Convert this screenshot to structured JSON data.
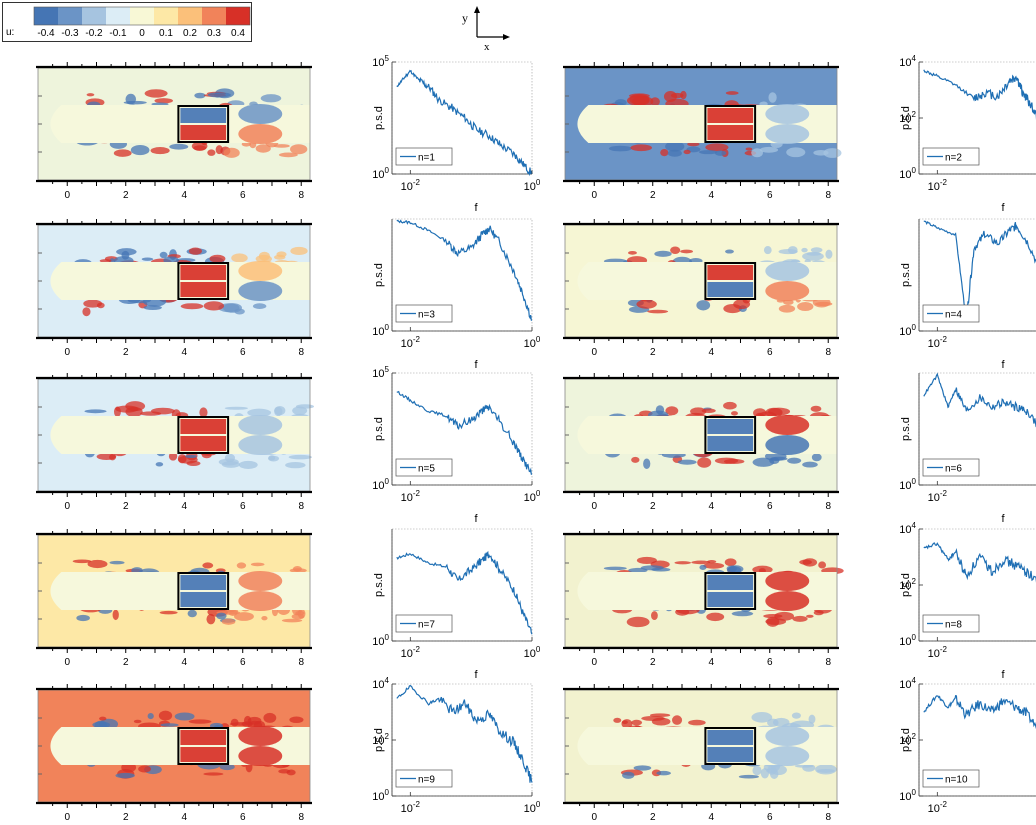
{
  "colorbar": {
    "variable_label": "u:",
    "tick_labels": [
      "-0.4",
      "-0.3",
      "-0.2",
      "-0.1",
      "0",
      "0.1",
      "0.2",
      "0.3",
      "0.4"
    ],
    "colors": [
      "#4575b4",
      "#6b94c6",
      "#a6c4e0",
      "#dcedf6",
      "#f8f8d6",
      "#fde8a6",
      "#fbc07a",
      "#f1835a",
      "#d73027"
    ]
  },
  "axes_indicator": {
    "y_label": "y",
    "x_label": "x"
  },
  "chart_data": {
    "type": "line",
    "contour_x_ticks": [
      "0",
      "2",
      "4",
      "6",
      "8"
    ],
    "contour_x_range": [
      -1,
      8.3
    ],
    "box_x_range": [
      3.8,
      5.5
    ],
    "psd_xlabel": "f",
    "psd_ylabel": "p.s.d",
    "psd_x_range": [
      0.005,
      1
    ],
    "psd_x_tick_labels": [
      "10^-2",
      "10^0"
    ],
    "modes": [
      {
        "legend": "n=1",
        "y_range": [
          1,
          100000
        ],
        "y_tick_labels": [
          "10^0",
          "10^5"
        ],
        "background": "#eef4dc",
        "core": "#f6f8dc",
        "top": "#4575b4",
        "bottom": "#d73027",
        "wake_top": "#6b94c6",
        "wake_bottom": "#f1835a",
        "psd": [
          [
            0.006,
            8000
          ],
          [
            0.008,
            20000
          ],
          [
            0.01,
            40000
          ],
          [
            0.014,
            15000
          ],
          [
            0.02,
            8000
          ],
          [
            0.03,
            2000
          ],
          [
            0.05,
            800
          ],
          [
            0.08,
            300
          ],
          [
            0.12,
            100
          ],
          [
            0.2,
            50
          ],
          [
            0.3,
            20
          ],
          [
            0.5,
            8
          ],
          [
            0.7,
            3
          ],
          [
            1,
            1
          ]
        ]
      },
      {
        "legend": "n=2",
        "y_range": [
          1,
          10000
        ],
        "y_tick_labels": [
          "10^0",
          "10^2",
          "10^4"
        ],
        "background": "#6b94c6",
        "core": "#f6f8dc",
        "top": "#d73027",
        "bottom": "#d73027",
        "wake_top": "#a6c4e0",
        "wake_bottom": "#a6c4e0",
        "psd": [
          [
            0.006,
            5000
          ],
          [
            0.01,
            3000
          ],
          [
            0.02,
            1500
          ],
          [
            0.04,
            500
          ],
          [
            0.06,
            800
          ],
          [
            0.1,
            600
          ],
          [
            0.15,
            2000
          ],
          [
            0.2,
            3000
          ],
          [
            0.25,
            800
          ],
          [
            0.35,
            300
          ],
          [
            0.5,
            50
          ],
          [
            0.7,
            10
          ],
          [
            1,
            2
          ]
        ]
      },
      {
        "legend": "n=3",
        "y_range": [
          1,
          100000
        ],
        "y_tick_labels": [
          "10^0"
        ],
        "background": "#dcedf6",
        "core": "#f6f8dc",
        "top": "#d73027",
        "bottom": "#d73027",
        "wake_top": "#fbc07a",
        "wake_bottom": "#6b94c6",
        "psd": [
          [
            0.006,
            80000
          ],
          [
            0.01,
            70000
          ],
          [
            0.02,
            30000
          ],
          [
            0.04,
            10000
          ],
          [
            0.06,
            3000
          ],
          [
            0.1,
            5000
          ],
          [
            0.15,
            20000
          ],
          [
            0.2,
            40000
          ],
          [
            0.3,
            8000
          ],
          [
            0.5,
            500
          ],
          [
            0.7,
            50
          ],
          [
            1,
            3
          ]
        ]
      },
      {
        "legend": "n=4",
        "y_range": [
          1,
          100000
        ],
        "y_tick_labels": [
          "10^0"
        ],
        "background": "#f6f6d4",
        "core": "#f6f8dc",
        "top": "#d73027",
        "bottom": "#4575b4",
        "wake_top": "#a6c4e0",
        "wake_bottom": "#f1835a",
        "psd": [
          [
            0.006,
            80000
          ],
          [
            0.01,
            40000
          ],
          [
            0.02,
            20000
          ],
          [
            0.03,
            3
          ],
          [
            0.04,
            5000
          ],
          [
            0.06,
            20000
          ],
          [
            0.1,
            8000
          ],
          [
            0.15,
            30000
          ],
          [
            0.2,
            50000
          ],
          [
            0.3,
            10000
          ],
          [
            0.5,
            500
          ],
          [
            0.7,
            30
          ],
          [
            1,
            2
          ]
        ]
      },
      {
        "legend": "n=5",
        "y_range": [
          1,
          100000
        ],
        "y_tick_labels": [
          "10^0",
          "10^5"
        ],
        "background": "#dcedf6",
        "core": "#f6f8dc",
        "top": "#d73027",
        "bottom": "#d73027",
        "wake_top": "#a6c4e0",
        "wake_bottom": "#a6c4e0",
        "psd": [
          [
            0.006,
            15000
          ],
          [
            0.01,
            6000
          ],
          [
            0.02,
            2000
          ],
          [
            0.04,
            1200
          ],
          [
            0.06,
            400
          ],
          [
            0.1,
            800
          ],
          [
            0.15,
            2000
          ],
          [
            0.2,
            3000
          ],
          [
            0.3,
            600
          ],
          [
            0.5,
            80
          ],
          [
            0.7,
            15
          ],
          [
            1,
            3
          ]
        ]
      },
      {
        "legend": "n=6",
        "y_range": [
          1,
          100000
        ],
        "y_tick_labels": [
          "10^0"
        ],
        "background": "#eef4dc",
        "core": "#f6f8dc",
        "top": "#4575b4",
        "bottom": "#4575b4",
        "wake_top": "#d73027",
        "wake_bottom": "#4575b4",
        "psd": [
          [
            0.006,
            10000
          ],
          [
            0.01,
            80000
          ],
          [
            0.015,
            3000
          ],
          [
            0.02,
            20000
          ],
          [
            0.03,
            2000
          ],
          [
            0.05,
            8000
          ],
          [
            0.08,
            3000
          ],
          [
            0.12,
            5000
          ],
          [
            0.2,
            3000
          ],
          [
            0.3,
            2000
          ],
          [
            0.5,
            300
          ],
          [
            0.7,
            50
          ],
          [
            1,
            5
          ]
        ]
      },
      {
        "legend": "n=7",
        "y_range": [
          1,
          100000
        ],
        "y_tick_labels": [
          "10^0"
        ],
        "background": "#fde8a6",
        "core": "#f6f8dc",
        "top": "#4575b4",
        "bottom": "#4575b4",
        "wake_top": "#f1835a",
        "wake_bottom": "#f1835a",
        "psd": [
          [
            0.006,
            5000
          ],
          [
            0.01,
            8000
          ],
          [
            0.02,
            3000
          ],
          [
            0.04,
            2000
          ],
          [
            0.06,
            500
          ],
          [
            0.1,
            1500
          ],
          [
            0.15,
            4000
          ],
          [
            0.2,
            8000
          ],
          [
            0.3,
            1500
          ],
          [
            0.5,
            200
          ],
          [
            0.7,
            20
          ],
          [
            1,
            2
          ]
        ]
      },
      {
        "legend": "n=8",
        "y_range": [
          1,
          10000
        ],
        "y_tick_labels": [
          "10^0",
          "10^2",
          "10^4"
        ],
        "background": "#f2f2cf",
        "core": "#f6f8dc",
        "top": "#4575b4",
        "bottom": "#4575b4",
        "wake_top": "#d73027",
        "wake_bottom": "#d73027",
        "psd": [
          [
            0.006,
            2000
          ],
          [
            0.01,
            3000
          ],
          [
            0.015,
            800
          ],
          [
            0.02,
            1500
          ],
          [
            0.03,
            200
          ],
          [
            0.05,
            1000
          ],
          [
            0.08,
            300
          ],
          [
            0.12,
            800
          ],
          [
            0.2,
            500
          ],
          [
            0.3,
            300
          ],
          [
            0.5,
            100
          ],
          [
            0.7,
            30
          ],
          [
            1,
            8
          ]
        ]
      },
      {
        "legend": "n=9",
        "y_range": [
          1,
          10000
        ],
        "y_tick_labels": [
          "10^0",
          "10^2",
          "10^4"
        ],
        "background": "#f1835a",
        "core": "#f6f8dc",
        "top": "#d73027",
        "bottom": "#d73027",
        "wake_top": "#d73027",
        "wake_bottom": "#d73027",
        "psd": [
          [
            0.006,
            3000
          ],
          [
            0.01,
            8000
          ],
          [
            0.02,
            2000
          ],
          [
            0.03,
            3000
          ],
          [
            0.05,
            1000
          ],
          [
            0.08,
            2000
          ],
          [
            0.12,
            500
          ],
          [
            0.2,
            800
          ],
          [
            0.3,
            200
          ],
          [
            0.5,
            80
          ],
          [
            0.7,
            20
          ],
          [
            1,
            3
          ]
        ]
      },
      {
        "legend": "n=10",
        "y_range": [
          1,
          10000
        ],
        "y_tick_labels": [
          "10^0",
          "10^2",
          "10^4"
        ],
        "background": "#f2f2cf",
        "core": "#f6f8dc",
        "top": "#4575b4",
        "bottom": "#4575b4",
        "wake_top": "#a6c4e0",
        "wake_bottom": "#a6c4e0",
        "psd": [
          [
            0.006,
            1000
          ],
          [
            0.01,
            4000
          ],
          [
            0.015,
            1500
          ],
          [
            0.02,
            3000
          ],
          [
            0.03,
            800
          ],
          [
            0.05,
            2000
          ],
          [
            0.08,
            1000
          ],
          [
            0.12,
            2500
          ],
          [
            0.2,
            1500
          ],
          [
            0.3,
            800
          ],
          [
            0.5,
            200
          ],
          [
            0.7,
            40
          ],
          [
            1,
            5
          ]
        ]
      }
    ]
  }
}
